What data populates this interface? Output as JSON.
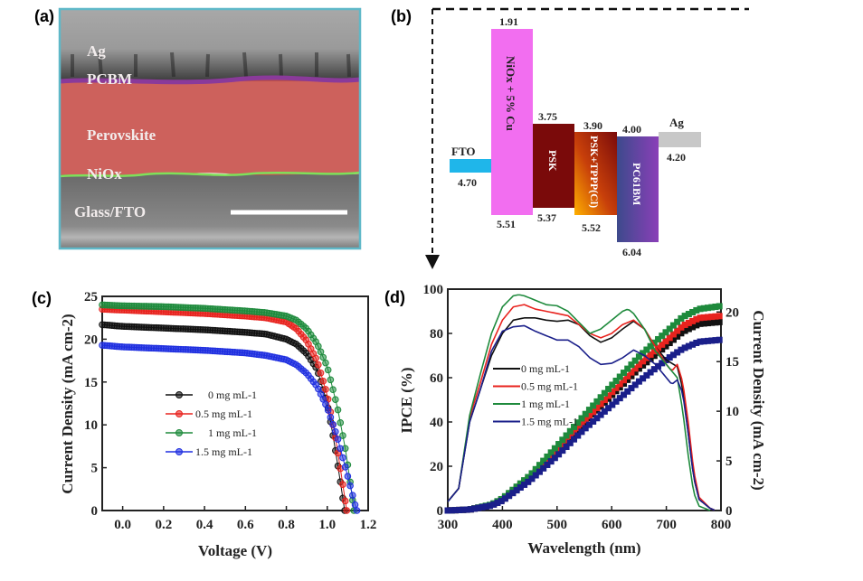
{
  "panel_labels": {
    "a": "(a)",
    "b": "(b)",
    "c": "(c)",
    "d": "(d)"
  },
  "panel_a": {
    "layers": [
      "Ag",
      "PCBM",
      "Perovskite",
      "NiOx",
      "Glass/FTO"
    ],
    "colors": {
      "perovskite": "#c8504a",
      "pcbm": "#8a3a9a",
      "niox": "#7ee05a",
      "border": "#5fb8c8"
    }
  },
  "chart_data": [
    {
      "type": "bar",
      "panel": "b",
      "layers": [
        {
          "name": "FTO",
          "top": null,
          "bottom": 4.7,
          "label_top": "FTO",
          "color": "#1fb6ea"
        },
        {
          "name": "NiOx + 5% Cu",
          "top": 1.91,
          "bottom": 5.51,
          "color": "#f26ef0"
        },
        {
          "name": "PSK",
          "top": 3.75,
          "bottom": 5.37,
          "color": "#7a0a0a"
        },
        {
          "name": "PSK+TPPP(Cl)",
          "top": 3.9,
          "bottom": 5.52,
          "color": "#b8300a"
        },
        {
          "name": "PC61BM",
          "top": 4.0,
          "bottom": 6.04,
          "color": "#5a3f9a"
        },
        {
          "name": "Ag",
          "top": null,
          "bottom": 4.2,
          "label_top": "Ag",
          "color": "#c8c8c8"
        }
      ],
      "value_labels": [
        "4.70",
        "1.91",
        "5.51",
        "3.75",
        "5.37",
        "3.90",
        "5.52",
        "4.00",
        "6.04",
        "4.20"
      ]
    },
    {
      "type": "scatter",
      "panel": "c",
      "xlabel": "Voltage (V)",
      "ylabel": "Current Density (mA cm-2)",
      "xlim": [
        -0.1,
        1.2
      ],
      "ylim": [
        0,
        25
      ],
      "xticks": [
        "0.0",
        "0.2",
        "0.4",
        "0.6",
        "0.8",
        "1.0",
        "1.2"
      ],
      "yticks": [
        "0",
        "5",
        "10",
        "15",
        "20",
        "25"
      ],
      "legend_position": "center-left",
      "series": [
        {
          "name": "0 mg mL-1",
          "color": "#111111",
          "x": [
            -0.1,
            0,
            0.2,
            0.4,
            0.6,
            0.7,
            0.8,
            0.85,
            0.9,
            0.95,
            1.0,
            1.03,
            1.06,
            1.085
          ],
          "y": [
            21.7,
            21.5,
            21.3,
            21.1,
            20.8,
            20.6,
            20.0,
            19.4,
            18.3,
            16.5,
            12.5,
            8.5,
            4.0,
            0
          ]
        },
        {
          "name": "0.5 mg mL-1",
          "color": "#e8231e",
          "x": [
            -0.1,
            0,
            0.2,
            0.4,
            0.6,
            0.7,
            0.8,
            0.85,
            0.9,
            0.95,
            1.0,
            1.04,
            1.07,
            1.095
          ],
          "y": [
            23.5,
            23.4,
            23.2,
            23.0,
            22.7,
            22.5,
            22.0,
            21.2,
            19.8,
            17.5,
            13.5,
            8.5,
            4.0,
            0
          ]
        },
        {
          "name": "1 mg mL-1",
          "color": "#1e8a3c",
          "x": [
            -0.1,
            0,
            0.2,
            0.4,
            0.6,
            0.7,
            0.8,
            0.85,
            0.9,
            0.95,
            1.0,
            1.05,
            1.09,
            1.12,
            1.13
          ],
          "y": [
            24.0,
            23.9,
            23.8,
            23.6,
            23.3,
            23.1,
            22.7,
            22.2,
            21.2,
            19.5,
            16.8,
            12.0,
            7.0,
            2.0,
            0
          ]
        },
        {
          "name": "1.5 mg mL-1",
          "color": "#1f2fe0",
          "x": [
            -0.1,
            0,
            0.2,
            0.4,
            0.6,
            0.7,
            0.8,
            0.85,
            0.9,
            0.95,
            1.0,
            1.05,
            1.1,
            1.14,
            1.145
          ],
          "y": [
            19.3,
            19.1,
            18.9,
            18.7,
            18.4,
            18.1,
            17.6,
            17.0,
            16.0,
            14.5,
            12.0,
            8.5,
            4.0,
            0.3,
            0
          ]
        }
      ]
    },
    {
      "type": "line",
      "panel": "d",
      "xlabel": "Wavelength (nm)",
      "ylabel": "IPCE (%)",
      "ylabel_right": "Current Density (mA cm-2)",
      "xlim": [
        300,
        800
      ],
      "ylim": [
        0,
        100
      ],
      "ylim_right": [
        0,
        22.3
      ],
      "xticks": [
        "300",
        "400",
        "500",
        "600",
        "700",
        "800"
      ],
      "yticks": [
        "0",
        "20",
        "40",
        "60",
        "80",
        "100"
      ],
      "yticks_right": [
        "0",
        "5",
        "10",
        "15",
        "20"
      ],
      "legend_position": "center-left",
      "series": [
        {
          "name": "0 mg mL-1",
          "color": "#111111",
          "x": [
            300,
            320,
            340,
            360,
            380,
            400,
            420,
            440,
            460,
            480,
            500,
            520,
            540,
            560,
            580,
            600,
            620,
            640,
            660,
            680,
            700,
            720,
            730,
            740,
            750,
            760,
            780,
            790
          ],
          "y": [
            4,
            10,
            40,
            55,
            70,
            80,
            86,
            87,
            87,
            86,
            85.5,
            86,
            84,
            79,
            76,
            78,
            82,
            85.5,
            82,
            74,
            68,
            65,
            55,
            35,
            15,
            5,
            1,
            0
          ]
        },
        {
          "name": "0.5 mg mL-1",
          "color": "#e8231e",
          "x": [
            300,
            320,
            340,
            360,
            380,
            400,
            420,
            440,
            460,
            480,
            500,
            520,
            540,
            560,
            580,
            600,
            620,
            640,
            660,
            680,
            700,
            710,
            720,
            730,
            740,
            750,
            760,
            780,
            790
          ],
          "y": [
            4,
            10,
            42,
            58,
            75,
            86,
            92,
            93,
            91,
            90,
            89,
            88,
            84,
            80,
            78,
            80,
            84,
            86,
            82,
            74,
            66,
            63,
            66,
            58,
            40,
            18,
            6,
            1,
            0
          ]
        },
        {
          "name": "1 mg mL-1",
          "color": "#1e8a3c",
          "x": [
            300,
            320,
            340,
            360,
            380,
            400,
            420,
            430,
            440,
            460,
            480,
            500,
            520,
            540,
            560,
            580,
            600,
            620,
            630,
            640,
            660,
            680,
            700,
            720,
            730,
            740,
            750,
            760,
            780
          ],
          "y": [
            4,
            10,
            43,
            62,
            80,
            92,
            97,
            97.5,
            97,
            95,
            93,
            92.5,
            90,
            85,
            80,
            82,
            86,
            90,
            91,
            89,
            82,
            72,
            66,
            60,
            45,
            25,
            8,
            2,
            0
          ]
        },
        {
          "name": "1.5 mg mL-1",
          "color": "#1a1f8a",
          "x": [
            300,
            320,
            340,
            360,
            380,
            400,
            420,
            440,
            460,
            480,
            500,
            520,
            540,
            560,
            580,
            600,
            620,
            640,
            660,
            680,
            700,
            710,
            720,
            730,
            740,
            750,
            760,
            780,
            790
          ],
          "y": [
            4,
            10,
            40,
            55,
            72,
            81,
            83,
            83.5,
            81,
            79,
            77,
            77,
            74,
            69,
            66,
            66.5,
            69,
            72.5,
            70,
            66,
            60,
            57,
            59,
            53,
            35,
            15,
            5,
            1,
            0
          ]
        }
      ],
      "integrated_series": [
        {
          "name": "0 mg mL-1",
          "color": "#111111",
          "x": [
            300,
            340,
            380,
            400,
            450,
            500,
            550,
            600,
            650,
            700,
            730,
            760,
            800
          ],
          "y": [
            0,
            0.1,
            0.55,
            1.1,
            3.2,
            6.0,
            8.8,
            11.6,
            14.3,
            16.6,
            18.0,
            18.8,
            19.0
          ]
        },
        {
          "name": "0.5 mg mL-1",
          "color": "#e8231e",
          "x": [
            300,
            340,
            380,
            400,
            450,
            500,
            550,
            600,
            650,
            700,
            730,
            760,
            800
          ],
          "y": [
            0,
            0.1,
            0.55,
            1.1,
            3.3,
            6.1,
            9.0,
            11.9,
            14.7,
            17.1,
            18.6,
            19.4,
            19.6
          ]
        },
        {
          "name": "1 mg mL-1",
          "color": "#1e8a3c",
          "x": [
            300,
            340,
            380,
            400,
            450,
            500,
            550,
            600,
            650,
            700,
            730,
            760,
            800
          ],
          "y": [
            0,
            0.1,
            0.6,
            1.2,
            3.5,
            6.5,
            9.6,
            12.6,
            15.5,
            18.0,
            19.5,
            20.3,
            20.6
          ]
        },
        {
          "name": "1.5 mg mL-1",
          "color": "#1a1f8a",
          "x": [
            300,
            340,
            380,
            400,
            450,
            500,
            550,
            600,
            650,
            700,
            730,
            760,
            800
          ],
          "y": [
            0,
            0.1,
            0.5,
            1.0,
            3.0,
            5.5,
            8.2,
            10.6,
            13.0,
            15.2,
            16.3,
            17.0,
            17.2
          ]
        }
      ]
    }
  ]
}
